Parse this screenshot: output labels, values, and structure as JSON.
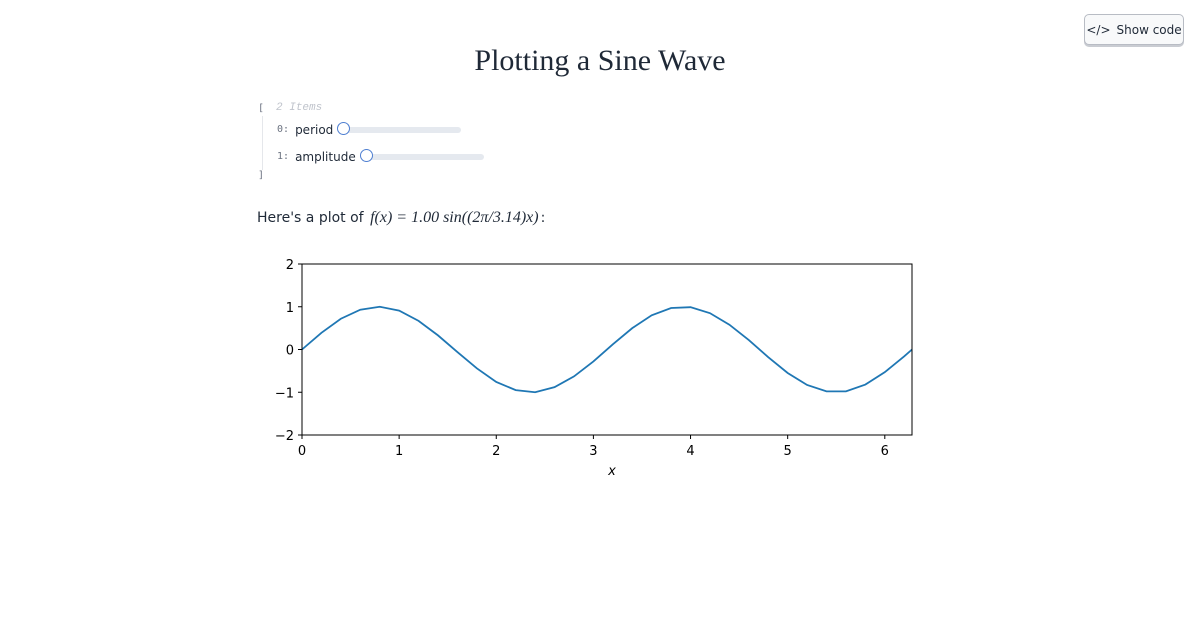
{
  "header": {
    "title": "Plotting a Sine Wave",
    "button": "Show code"
  },
  "tree": {
    "open": "[",
    "count": "2 Items",
    "separator": ":",
    "close": "]",
    "items": [
      {
        "index": "0",
        "label": "period"
      },
      {
        "index": "1",
        "label": "amplitude"
      }
    ]
  },
  "prose": {
    "prefix": "Here's a plot of",
    "formula": "f(x) = 1.00 sin((2π/3.14)x)",
    "suffix": ":"
  },
  "chart_data": {
    "type": "line",
    "xlabel": "x",
    "color": "#1f77b4",
    "x": [
      0,
      0.2,
      0.4,
      0.6,
      0.8,
      1.0,
      1.2,
      1.4,
      1.6,
      1.8,
      2.0,
      2.2,
      2.4,
      2.6,
      2.8,
      3.0,
      3.2,
      3.4,
      3.6,
      3.8,
      4.0,
      4.2,
      4.4,
      4.6,
      4.8,
      5.0,
      5.2,
      5.4,
      5.6,
      5.8,
      6.0,
      6.2,
      6.28
    ],
    "values": [
      0,
      0.39,
      0.72,
      0.93,
      1.0,
      0.91,
      0.67,
      0.33,
      -0.06,
      -0.44,
      -0.76,
      -0.95,
      -1.0,
      -0.88,
      -0.63,
      -0.28,
      0.12,
      0.5,
      0.8,
      0.97,
      0.99,
      0.85,
      0.58,
      0.22,
      -0.18,
      -0.55,
      -0.83,
      -0.98,
      -0.98,
      -0.82,
      -0.53,
      -0.16,
      0.0
    ],
    "xlim": [
      0,
      6.28
    ],
    "ylim": [
      -2,
      2
    ],
    "xticks": [
      0,
      1,
      2,
      3,
      4,
      5,
      6
    ],
    "yticks": [
      {
        "value": -2,
        "label": "−2"
      },
      {
        "value": -1,
        "label": "−1"
      },
      0,
      1,
      2
    ]
  }
}
